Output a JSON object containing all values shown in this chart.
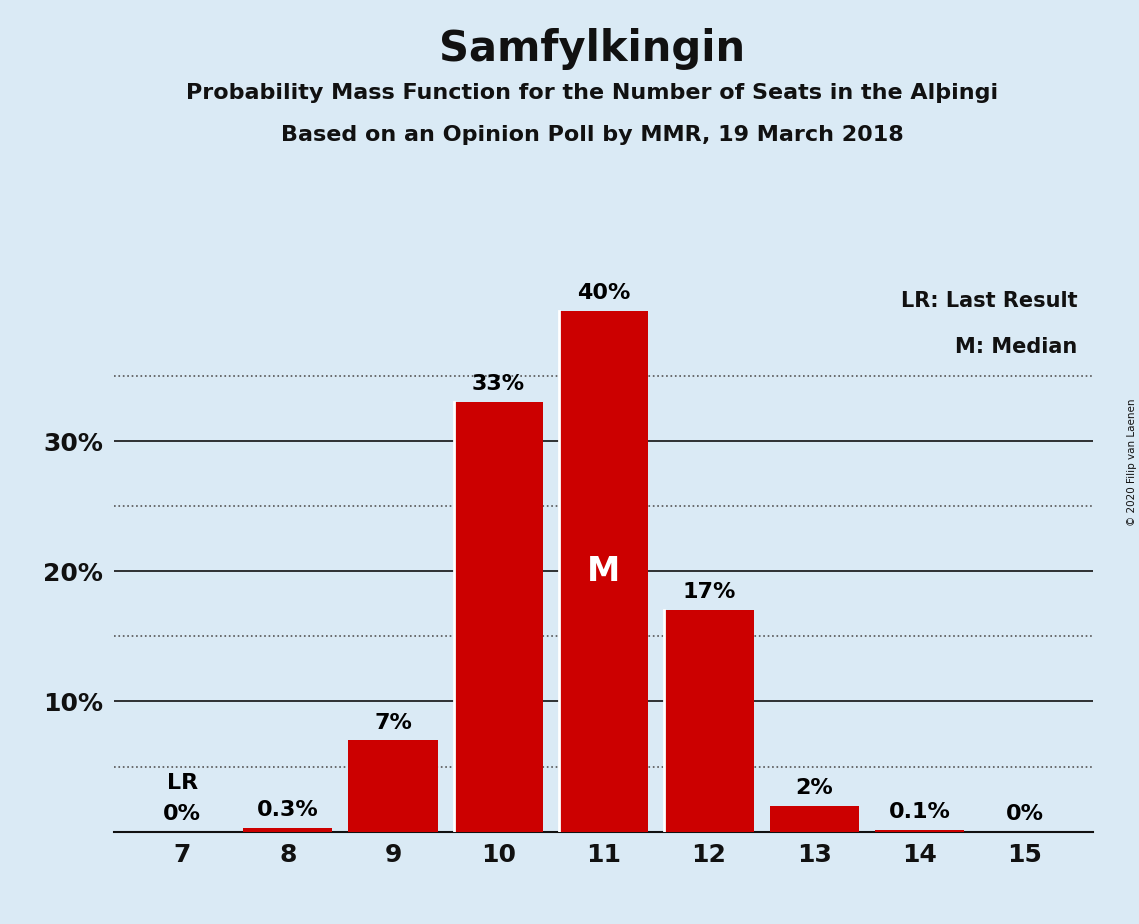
{
  "title": "Samfylkingin",
  "subtitle1": "Probability Mass Function for the Number of Seats in the Alþingi",
  "subtitle2": "Based on an Opinion Poll by MMR, 19 March 2018",
  "categories": [
    7,
    8,
    9,
    10,
    11,
    12,
    13,
    14,
    15
  ],
  "values": [
    0.0,
    0.3,
    7.0,
    33.0,
    40.0,
    17.0,
    2.0,
    0.1,
    0.0
  ],
  "labels": [
    "0%",
    "0.3%",
    "7%",
    "33%",
    "40%",
    "17%",
    "2%",
    "0.1%",
    "0%"
  ],
  "bar_color": "#cc0000",
  "background_color": "#daeaf5",
  "title_fontsize": 30,
  "subtitle_fontsize": 16,
  "label_fontsize": 16,
  "tick_fontsize": 18,
  "legend_fontsize": 15,
  "ylim_max": 44,
  "median_seat": 11,
  "lr_seat": 7,
  "legend_text1": "LR: Last Result",
  "legend_text2": "M: Median",
  "copyright_text": "© 2020 Filip van Laenen",
  "solid_yticks": [
    10,
    20,
    30
  ],
  "dotted_yticks": [
    5,
    15,
    25,
    35
  ],
  "ytick_labels": [
    10,
    20,
    30
  ],
  "bar_width": 0.85
}
